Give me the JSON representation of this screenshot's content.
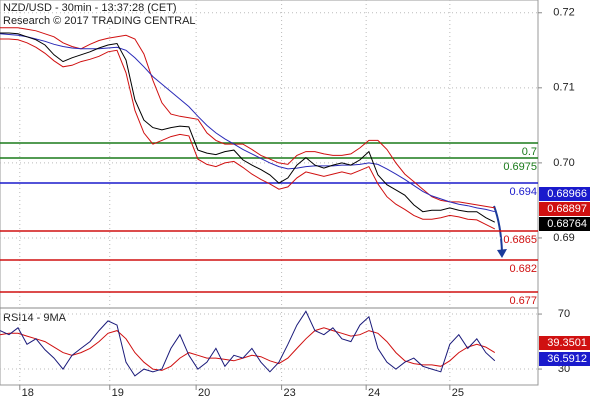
{
  "chart_data": [
    {
      "type": "line",
      "title": "NZD/USD - 30min - 13:37:28 (CET)",
      "subtitle": "Research © 2017 TRADING CENTRAL",
      "ylim": [
        0.6808,
        0.7217
      ],
      "xlim": [
        0,
        59.8
      ],
      "yticks": [
        0.72,
        0.71,
        {
          "value": 0.7,
          "label": "0.70"
        },
        0.69
      ],
      "grid": true,
      "series": [
        {
          "color": "#d01010",
          "values": [
            0.718,
            0.718,
            0.718,
            0.7178,
            0.7176,
            0.7172,
            0.7168,
            0.716,
            0.7155,
            0.7152,
            0.7158,
            0.7163,
            0.7166,
            0.7168,
            0.717,
            0.7165,
            0.7145,
            0.711,
            0.708,
            0.7065,
            0.7062,
            0.706,
            0.7058,
            0.704,
            0.703,
            0.7025,
            0.7025,
            0.7025,
            0.7018,
            0.701,
            0.7005,
            0.7,
            0.6998,
            0.701,
            0.7015,
            0.7015,
            0.7012,
            0.701,
            0.701,
            0.7012,
            0.702,
            0.703,
            0.703,
            0.7018,
            0.7,
            0.6985,
            0.6975,
            0.6965,
            0.6955,
            0.695,
            0.6948,
            0.6948,
            0.6946,
            0.6944,
            0.6942,
            0.694
          ]
        },
        {
          "color": "#d01010",
          "values": [
            0.7165,
            0.7165,
            0.7164,
            0.716,
            0.7154,
            0.7146,
            0.7136,
            0.7128,
            0.713,
            0.7135,
            0.7138,
            0.7142,
            0.7148,
            0.715,
            0.712,
            0.707,
            0.704,
            0.7025,
            0.703,
            0.7035,
            0.7038,
            0.7036,
            0.7005,
            0.6998,
            0.6995,
            0.7,
            0.7002,
            0.6994,
            0.6985,
            0.6978,
            0.6972,
            0.6965,
            0.6968,
            0.698,
            0.6988,
            0.6985,
            0.6982,
            0.6985,
            0.6988,
            0.6985,
            0.699,
            0.6995,
            0.6972,
            0.6955,
            0.6945,
            0.6938,
            0.693,
            0.6925,
            0.6925,
            0.6927,
            0.693,
            0.6928,
            0.6925,
            0.6924,
            0.6918,
            0.6912
          ]
        },
        {
          "color": "#2a2ab8",
          "values": [
            0.7172,
            0.7171,
            0.717,
            0.7168,
            0.7165,
            0.7162,
            0.7158,
            0.7155,
            0.7153,
            0.7152,
            0.7152,
            0.7152,
            0.7153,
            0.7154,
            0.715,
            0.714,
            0.7128,
            0.7115,
            0.7105,
            0.7095,
            0.7085,
            0.7075,
            0.7062,
            0.705,
            0.704,
            0.7032,
            0.7025,
            0.7018,
            0.7012,
            0.7006,
            0.7,
            0.6995,
            0.6992,
            0.6993,
            0.6995,
            0.6996,
            0.6996,
            0.6996,
            0.6997,
            0.6997,
            0.6998,
            0.7,
            0.6998,
            0.6992,
            0.6985,
            0.6978,
            0.697,
            0.6962,
            0.6956,
            0.6952,
            0.6948,
            0.6945,
            0.6943,
            0.694,
            0.6938,
            0.6935
          ]
        },
        {
          "color": "#000000",
          "values": [
            0.7173,
            0.7173,
            0.7172,
            0.7168,
            0.7164,
            0.7157,
            0.7144,
            0.7135,
            0.714,
            0.7144,
            0.7148,
            0.7153,
            0.7157,
            0.7159,
            0.7137,
            0.7084,
            0.7057,
            0.7047,
            0.7044,
            0.7047,
            0.7049,
            0.7048,
            0.7017,
            0.7013,
            0.7011,
            0.7015,
            0.7017,
            0.7004,
            0.6997,
            0.6991,
            0.6984,
            0.6973,
            0.698,
            0.6997,
            0.7007,
            0.6997,
            0.6993,
            0.6997,
            0.7,
            0.6997,
            0.7004,
            0.7015,
            0.6984,
            0.6971,
            0.6964,
            0.6957,
            0.6944,
            0.6935,
            0.6937,
            0.6937,
            0.694,
            0.6937,
            0.6935,
            0.6935,
            0.6927,
            0.6921
          ]
        }
      ],
      "levels": [
        0.7,
        0.6975,
        0.694,
        0.6865,
        0.682,
        0.677
      ],
      "level_colors": [
        "#1a7a1a",
        "#1a7a1a",
        "#1a1acc",
        "#d01010",
        "#d01010",
        "#d01010"
      ],
      "price_boxes": [
        0.68966,
        0.68897,
        0.68764
      ],
      "price_box_colors": [
        "#1a1acc",
        "#d01010",
        "#000000"
      ]
    },
    {
      "type": "line",
      "title": "RSI14 - 9MA",
      "ylim": [
        18.4,
        74.4
      ],
      "xlim": [
        0,
        59.8
      ],
      "yticks": [
        70,
        30
      ],
      "xticks": [
        {
          "value": 2.2,
          "label": "18"
        },
        {
          "value": 12.2,
          "label": "19"
        },
        {
          "value": 21.8,
          "label": "20"
        },
        {
          "value": 31.3,
          "label": "23"
        },
        {
          "value": 40.7,
          "label": "24"
        },
        {
          "value": 50,
          "label": "25"
        }
      ],
      "grid": true,
      "series": [
        {
          "color": "#d01010",
          "values": [
            55,
            56,
            56,
            54,
            52,
            50,
            46,
            42,
            40,
            42,
            45,
            50,
            56,
            58,
            52,
            42,
            35,
            30,
            29,
            32,
            38,
            42,
            40,
            38,
            38,
            37,
            36,
            38,
            40,
            39,
            36,
            34,
            38,
            45,
            52,
            58,
            60,
            58,
            56,
            54,
            55,
            58,
            56,
            50,
            42,
            36,
            34,
            33,
            33,
            32,
            36,
            42,
            46,
            48,
            46,
            42
          ]
        },
        {
          "color": "#1a1a7a",
          "values": [
            58,
            55,
            60,
            48,
            52,
            44,
            38,
            30,
            40,
            45,
            50,
            58,
            65,
            62,
            35,
            25,
            30,
            28,
            30,
            45,
            55,
            40,
            30,
            35,
            45,
            32,
            40,
            38,
            45,
            35,
            28,
            35,
            48,
            62,
            72,
            58,
            55,
            60,
            52,
            50,
            62,
            68,
            45,
            35,
            30,
            35,
            38,
            32,
            30,
            28,
            48,
            55,
            45,
            52,
            42,
            36
          ]
        }
      ],
      "price_boxes": [
        39.3501,
        36.5912
      ],
      "price_box_colors": [
        "#d01010",
        "#1a1acc"
      ]
    }
  ]
}
